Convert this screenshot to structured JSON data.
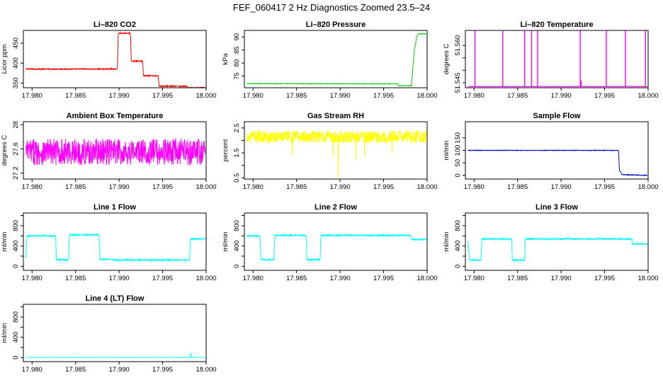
{
  "title": "FEF_060417  2 Hz Diagnostics Zoomed 23.5–24",
  "chart_data": [
    {
      "type": "line",
      "title": "Li–820 CO2",
      "ylabel": "Licor ppm",
      "color": "#ff0000",
      "xlim": [
        17.979,
        18.0
      ],
      "ylim": [
        338,
        482
      ],
      "yticks": [
        350,
        400,
        450
      ],
      "xticks": [
        17.98,
        17.985,
        17.99,
        17.995,
        18.0
      ],
      "xtick_labels": [
        "17.980",
        "17.985",
        "17.990",
        "17.995",
        "18.000"
      ],
      "x": [
        17.9793,
        17.9898,
        17.9899,
        17.9913,
        17.9914,
        17.9927,
        17.9928,
        17.9945,
        17.9946,
        17.9978,
        17.9979,
        17.9999
      ],
      "y": [
        385,
        385,
        475,
        475,
        405,
        405,
        368,
        368,
        342,
        342,
        338,
        338
      ],
      "noise": 1.5
    },
    {
      "type": "line",
      "title": "Li–820 Pressure",
      "ylabel": "kPa",
      "color": "#00cc00",
      "xlim": [
        17.979,
        18.0
      ],
      "ylim": [
        70.5,
        92.5
      ],
      "yticks": [
        75,
        80,
        85,
        90
      ],
      "xticks": [
        17.98,
        17.985,
        17.99,
        17.995,
        18.0
      ],
      "xtick_labels": [
        "17.980",
        "17.985",
        "17.990",
        "17.995",
        "18.000"
      ],
      "x": [
        17.9793,
        17.9966,
        17.9967,
        17.9982,
        17.9985,
        17.9988,
        17.999,
        17.9999
      ],
      "y": [
        72.1,
        72.0,
        71.3,
        71.3,
        84,
        90,
        91.2,
        91.2
      ],
      "noise": 0.1
    },
    {
      "type": "line",
      "title": "Li–820 Temperature",
      "ylabel": "degrees C",
      "color": "#ff00ff",
      "xlim": [
        17.979,
        18.0
      ],
      "ylim": [
        51.543,
        51.566
      ],
      "yticks": [
        51.545,
        51.55,
        51.555,
        51.56
      ],
      "ytick_labels": [
        "51.545",
        "",
        "",
        "51.560"
      ],
      "xticks": [
        17.98,
        17.985,
        17.99,
        17.995,
        18.0
      ],
      "xtick_labels": [
        "17.980",
        "17.985",
        "17.990",
        "17.995",
        "18.000"
      ],
      "baseline": 51.5435,
      "spikes": [
        {
          "x": 17.9801,
          "y": 51.566
        },
        {
          "x": 17.9833,
          "y": 51.566
        },
        {
          "x": 17.9858,
          "y": 51.566
        },
        {
          "x": 17.9866,
          "y": 51.566
        },
        {
          "x": 17.9873,
          "y": 51.566
        },
        {
          "x": 17.9922,
          "y": 51.566
        },
        {
          "x": 17.9923,
          "y": 51.546
        },
        {
          "x": 17.9952,
          "y": 51.566
        },
        {
          "x": 17.9974,
          "y": 51.566
        },
        {
          "x": 17.9997,
          "y": 51.566
        }
      ]
    },
    {
      "type": "line",
      "title": "Ambient Box Temperature",
      "ylabel": "degrees C",
      "color": "#ff00ff",
      "xlim": [
        17.979,
        18.0
      ],
      "ylim": [
        27.1,
        28.05
      ],
      "yticks": [
        27.2,
        27.6,
        28.0
      ],
      "xticks": [
        17.98,
        17.985,
        17.99,
        17.995,
        18.0
      ],
      "xtick_labels": [
        "17.980",
        "17.985",
        "17.990",
        "17.995",
        "18.000"
      ],
      "x": [
        17.9793,
        17.9999
      ],
      "y": [
        27.55,
        27.55
      ],
      "noise": 0.22
    },
    {
      "type": "line",
      "title": "Gas Stream RH",
      "ylabel": "percent",
      "color": "#ffff00",
      "xlim": [
        17.979,
        18.0
      ],
      "ylim": [
        0.45,
        2.75
      ],
      "yticks": [
        0.5,
        1.5,
        2.5
      ],
      "yticks_minor": [
        1.0,
        2.0
      ],
      "xticks": [
        17.98,
        17.985,
        17.99,
        17.995,
        18.0
      ],
      "xtick_labels": [
        "17.980",
        "17.985",
        "17.990",
        "17.995",
        "18.000"
      ],
      "x": [
        17.9793,
        17.9999
      ],
      "y": [
        2.15,
        2.15
      ],
      "noise": 0.25,
      "dips": [
        {
          "x": 17.9898,
          "y": 0.5
        },
        {
          "x": 17.9892,
          "y": 1.3
        },
        {
          "x": 17.9918,
          "y": 1.2
        },
        {
          "x": 17.9928,
          "y": 1.35
        },
        {
          "x": 17.9845,
          "y": 1.4
        },
        {
          "x": 17.996,
          "y": 1.5
        }
      ]
    },
    {
      "type": "line",
      "title": "Sample Flow",
      "ylabel": "ml/min",
      "color": "#0000cc",
      "xlim": [
        17.979,
        18.0
      ],
      "ylim": [
        -15,
        215
      ],
      "yticks": [
        0,
        50,
        100,
        150
      ],
      "xticks": [
        17.98,
        17.985,
        17.99,
        17.995,
        18.0
      ],
      "xtick_labels": [
        "17.980",
        "17.985",
        "17.990",
        "17.995",
        "18.000"
      ],
      "x": [
        17.9793,
        17.9966,
        17.9967,
        17.997,
        17.9999
      ],
      "y": [
        100,
        100,
        20,
        3,
        0
      ],
      "noise": 1.2
    },
    {
      "type": "line",
      "title": "Line 1 Flow",
      "ylabel": "ml/min",
      "color": "#00ffff",
      "xlim": [
        17.979,
        18.0
      ],
      "ylim": [
        -80,
        1050
      ],
      "yticks": [
        0,
        400,
        800
      ],
      "yticks_minor": [
        200,
        600,
        1000
      ],
      "xticks": [
        17.98,
        17.985,
        17.99,
        17.995,
        18.0
      ],
      "xtick_labels": [
        "17.980",
        "17.985",
        "17.990",
        "17.995",
        "18.000"
      ],
      "x": [
        17.9793,
        17.9794,
        17.9827,
        17.9828,
        17.9842,
        17.9843,
        17.9877,
        17.9878,
        17.9893,
        17.9894,
        17.9981,
        17.9982,
        17.9999
      ],
      "y": [
        150,
        600,
        600,
        130,
        130,
        620,
        620,
        140,
        140,
        125,
        125,
        540,
        540
      ],
      "noise": 15
    },
    {
      "type": "line",
      "title": "Line 2 Flow",
      "ylabel": "ml/min",
      "color": "#00ffff",
      "xlim": [
        17.979,
        18.0
      ],
      "ylim": [
        -80,
        1050
      ],
      "yticks": [
        0,
        400,
        800
      ],
      "yticks_minor": [
        200,
        600,
        1000
      ],
      "xticks": [
        17.98,
        17.985,
        17.99,
        17.995,
        18.0
      ],
      "xtick_labels": [
        "17.980",
        "17.985",
        "17.990",
        "17.995",
        "18.000"
      ],
      "x": [
        17.9793,
        17.9808,
        17.9809,
        17.9824,
        17.9825,
        17.9861,
        17.9862,
        17.9877,
        17.9878,
        17.9981,
        17.9982,
        17.9999
      ],
      "y": [
        600,
        600,
        130,
        130,
        610,
        610,
        130,
        130,
        610,
        610,
        530,
        530
      ],
      "noise": 15
    },
    {
      "type": "line",
      "title": "Line 3 Flow",
      "ylabel": "ml/min",
      "color": "#00ffff",
      "xlim": [
        17.979,
        18.0
      ],
      "ylim": [
        -80,
        1050
      ],
      "yticks": [
        0,
        400,
        800
      ],
      "yticks_minor": [
        200,
        600,
        1000
      ],
      "xticks": [
        17.98,
        17.985,
        17.99,
        17.995,
        18.0
      ],
      "xtick_labels": [
        "17.980",
        "17.985",
        "17.990",
        "17.995",
        "18.000"
      ],
      "x": [
        17.9793,
        17.9795,
        17.9808,
        17.9809,
        17.9843,
        17.9844,
        17.9858,
        17.9859,
        17.9981,
        17.9982,
        17.9999
      ],
      "y": [
        480,
        120,
        120,
        540,
        540,
        120,
        120,
        540,
        540,
        440,
        440
      ],
      "noise": 15
    },
    {
      "type": "line",
      "title": "Line 4 (LT) Flow",
      "ylabel": "ml/min",
      "color": "#00ffff",
      "xlim": [
        17.979,
        18.0
      ],
      "ylim": [
        -80,
        1050
      ],
      "yticks": [
        0,
        400,
        800
      ],
      "yticks_minor": [
        200,
        600,
        1000
      ],
      "xticks": [
        17.98,
        17.985,
        17.99,
        17.995,
        18.0
      ],
      "xtick_labels": [
        "17.980",
        "17.985",
        "17.990",
        "17.995",
        "18.000"
      ],
      "x": [
        17.9793,
        17.9982,
        17.99825,
        17.9983,
        17.9999
      ],
      "y": [
        5,
        5,
        95,
        5,
        5
      ],
      "noise": 2
    }
  ]
}
